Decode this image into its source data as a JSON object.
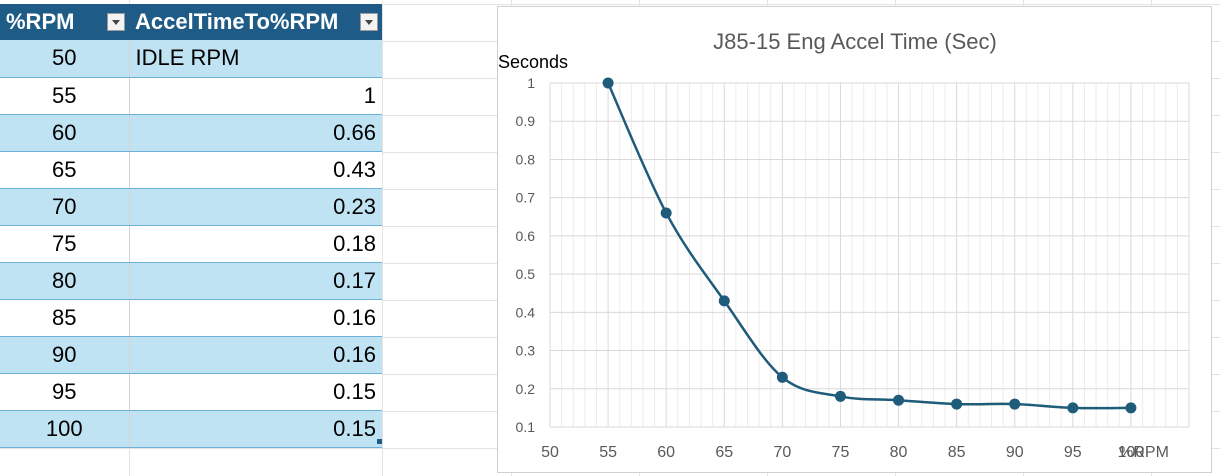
{
  "table": {
    "headers": {
      "rpm": "%RPM",
      "accel": "AccelTimeTo%RPM"
    },
    "rows": [
      {
        "rpm": "50",
        "accel": "IDLE RPM"
      },
      {
        "rpm": "55",
        "accel": "1"
      },
      {
        "rpm": "60",
        "accel": "0.66"
      },
      {
        "rpm": "65",
        "accel": "0.43"
      },
      {
        "rpm": "70",
        "accel": "0.23"
      },
      {
        "rpm": "75",
        "accel": "0.18"
      },
      {
        "rpm": "80",
        "accel": "0.17"
      },
      {
        "rpm": "85",
        "accel": "0.16"
      },
      {
        "rpm": "90",
        "accel": "0.16"
      },
      {
        "rpm": "95",
        "accel": "0.15"
      },
      {
        "rpm": "100",
        "accel": "0.15"
      }
    ]
  },
  "colors": {
    "header_bg": "#1f5b87",
    "band": "#bfe3f3",
    "series": "#1f5b7a",
    "grid": "#d9d9d9"
  },
  "chart_data": {
    "type": "line",
    "title": "J85-15 Eng Accel Time (Sec)",
    "xlabel": "%RPM",
    "ylabel": "Seconds",
    "x": [
      55,
      60,
      65,
      70,
      75,
      80,
      85,
      90,
      95,
      100
    ],
    "y": [
      1,
      0.66,
      0.43,
      0.23,
      0.18,
      0.17,
      0.16,
      0.16,
      0.15,
      0.15
    ],
    "xlim": [
      50,
      105
    ],
    "ylim": [
      0.1,
      1
    ],
    "x_ticks": [
      "50",
      "55",
      "60",
      "65",
      "70",
      "75",
      "80",
      "85",
      "90",
      "95",
      "100"
    ],
    "y_ticks": [
      "0.1",
      "0.2",
      "0.3",
      "0.4",
      "0.5",
      "0.6",
      "0.7",
      "0.8",
      "0.9",
      "1"
    ],
    "smooth": true,
    "markers": true,
    "grid": true,
    "legend": "none"
  }
}
